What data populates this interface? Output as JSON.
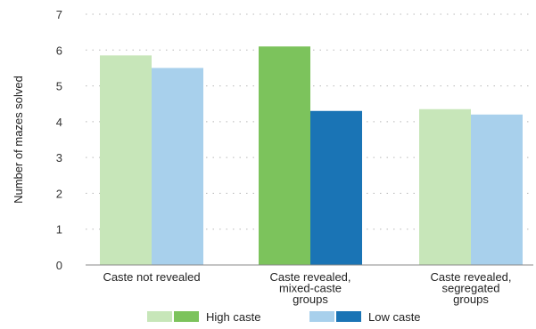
{
  "chart_data": {
    "type": "bar",
    "title": "",
    "xlabel": "",
    "ylabel": "Number of mazes solved",
    "ylim": [
      0,
      7
    ],
    "yticks": [
      0,
      1,
      2,
      3,
      4,
      5,
      6,
      7
    ],
    "grid": true,
    "legend_position": "bottom",
    "categories": [
      [
        "Caste not revealed"
      ],
      [
        "Caste revealed,",
        "mixed-caste",
        "groups"
      ],
      [
        "Caste revealed,",
        "segregated",
        "groups"
      ]
    ],
    "series": [
      {
        "name": "High caste",
        "values": [
          5.85,
          6.1,
          4.35
        ],
        "colors": [
          "#c7e6b9",
          "#7cc35c",
          "#c7e6b9"
        ],
        "legend_colors": [
          "#c7e6b9",
          "#7cc35c"
        ]
      },
      {
        "name": "Low caste",
        "values": [
          5.5,
          4.3,
          4.2
        ],
        "colors": [
          "#a8d0ec",
          "#1a74b5",
          "#a8d0ec"
        ],
        "legend_colors": [
          "#a8d0ec",
          "#1a74b5"
        ]
      }
    ]
  }
}
